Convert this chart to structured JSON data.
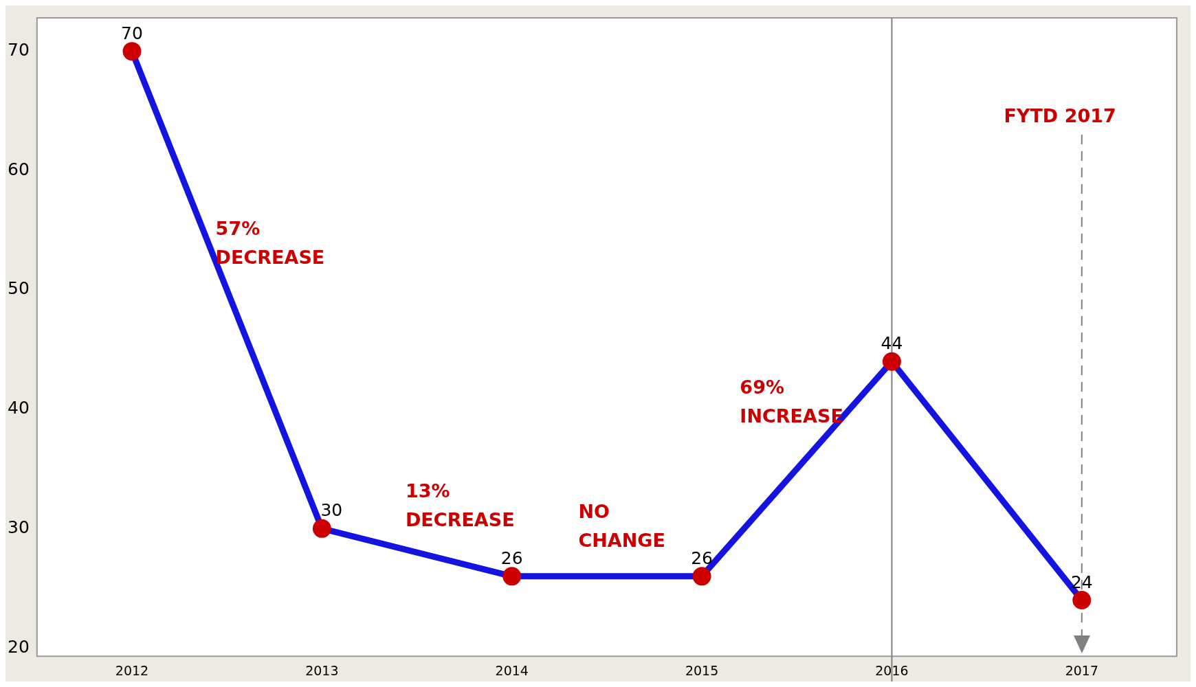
{
  "chart_data": {
    "type": "line",
    "categories": [
      "2012",
      "2013",
      "2014",
      "2015",
      "2016",
      "2017"
    ],
    "series": [
      {
        "color": "#1414e0",
        "values": [
          70,
          30,
          26,
          26,
          44,
          24
        ]
      }
    ],
    "colors": [
      "#cc0000",
      "#cc0000",
      "#cc0000",
      "#cc0000",
      "#cc0000",
      "#cc0000"
    ],
    "marker": "circle",
    "data_labels": true,
    "grid": false,
    "legend": false,
    "ylim": [
      19.3,
      72.8
    ],
    "yticks": [
      20,
      30,
      40,
      50,
      60,
      70
    ],
    "annotations": [
      "57% DECREASE",
      "13% DECREASE",
      "NO CHANGE",
      "69% INCREASE"
    ],
    "ref_lines": [
      {
        "axis": "x",
        "value": "2016",
        "color": "#808080",
        "line_style": "solid"
      },
      {
        "axis": "x",
        "value": "2017",
        "label": "FYTD 2017",
        "color": "#808080",
        "line_style": "dashed"
      }
    ]
  }
}
